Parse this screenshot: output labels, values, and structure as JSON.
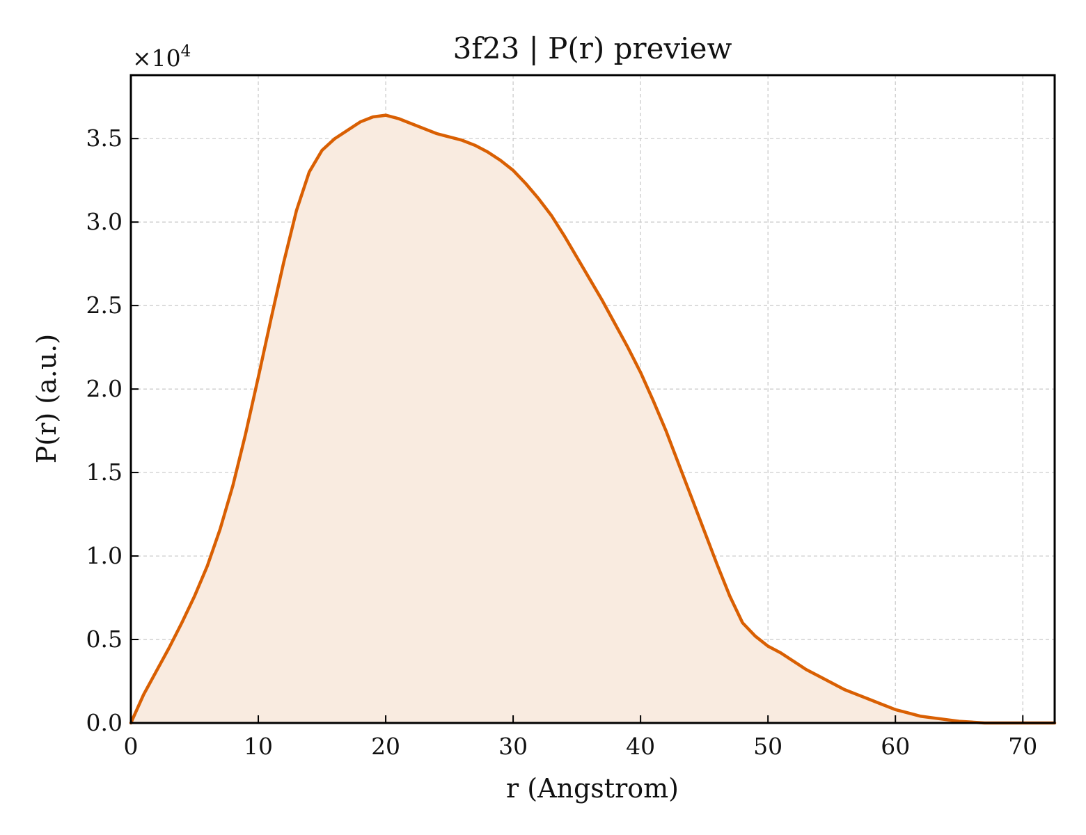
{
  "chart_data": {
    "type": "area",
    "title": "3f23 | P(r) preview",
    "xlabel": "r (Angstrom)",
    "ylabel": "P(r) (a.u.)",
    "offset_label_base": "×10",
    "offset_label_exp": "4",
    "xlim": [
      0,
      72.5
    ],
    "ylim": [
      0,
      3.88
    ],
    "y_scale_exponent": 4,
    "x_ticks": [
      0,
      10,
      20,
      30,
      40,
      50,
      60,
      70
    ],
    "x_tick_labels": [
      "0",
      "10",
      "20",
      "30",
      "40",
      "50",
      "60",
      "70"
    ],
    "y_ticks": [
      0,
      0.5,
      1.0,
      1.5,
      2.0,
      2.5,
      3.0,
      3.5
    ],
    "y_tick_labels": [
      "0.0",
      "0.5",
      "1.0",
      "1.5",
      "2.0",
      "2.5",
      "3.0",
      "3.5"
    ],
    "grid": true,
    "line_color": "#d95f02",
    "fill_color": "#f9ebe0",
    "series": [
      {
        "x": [
          0,
          1,
          2,
          3,
          4,
          5,
          6,
          7,
          8,
          9,
          10,
          11,
          12,
          13,
          14,
          15,
          16,
          17,
          18,
          19,
          20,
          21,
          22,
          23,
          24,
          25,
          26,
          27,
          28,
          29,
          30,
          31,
          32,
          33,
          34,
          35,
          36,
          37,
          38,
          39,
          40,
          41,
          42,
          43,
          44,
          45,
          46,
          47,
          48,
          49,
          50,
          51,
          52,
          53,
          54,
          55,
          56,
          57,
          58,
          59,
          60,
          61,
          62,
          63,
          64,
          65,
          66,
          67,
          68,
          69,
          70,
          71,
          72,
          72.5
        ],
        "values": [
          0,
          0.17,
          0.31,
          0.45,
          0.6,
          0.76,
          0.94,
          1.16,
          1.42,
          1.73,
          2.07,
          2.42,
          2.76,
          3.07,
          3.3,
          3.43,
          3.5,
          3.55,
          3.6,
          3.63,
          3.64,
          3.62,
          3.59,
          3.56,
          3.53,
          3.51,
          3.49,
          3.46,
          3.42,
          3.37,
          3.31,
          3.23,
          3.14,
          3.04,
          2.92,
          2.79,
          2.66,
          2.53,
          2.39,
          2.25,
          2.1,
          1.93,
          1.75,
          1.55,
          1.35,
          1.15,
          0.95,
          0.76,
          0.6,
          0.52,
          0.46,
          0.42,
          0.37,
          0.32,
          0.28,
          0.24,
          0.2,
          0.17,
          0.14,
          0.11,
          0.08,
          0.06,
          0.04,
          0.03,
          0.02,
          0.01,
          0.005,
          0,
          0,
          0,
          0,
          0,
          0,
          0
        ]
      }
    ]
  }
}
